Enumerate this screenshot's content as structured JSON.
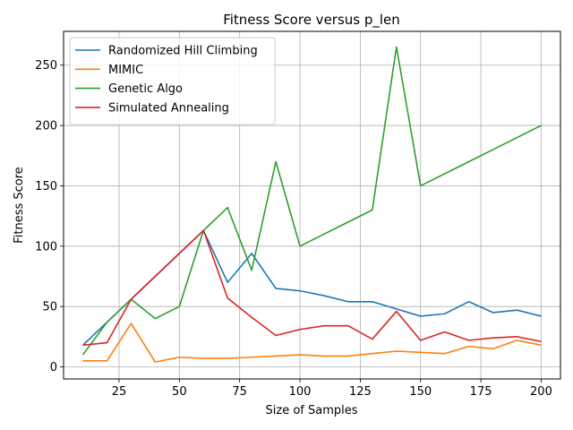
{
  "chart_data": {
    "type": "line",
    "title": "Fitness Score versus p_len",
    "xlabel": "Size of Samples",
    "ylabel": "Fitness Score",
    "xlim": [
      2,
      208
    ],
    "ylim": [
      -10,
      278
    ],
    "xticks": [
      25,
      50,
      75,
      100,
      125,
      150,
      175,
      200
    ],
    "yticks": [
      0,
      50,
      100,
      150,
      200,
      250
    ],
    "grid": true,
    "legend_position": "top-left",
    "series": [
      {
        "name": "Randomized Hill Climbing",
        "color": "#1f77b4",
        "x": [
          10,
          20,
          30,
          40,
          50,
          60,
          70,
          80,
          90,
          100,
          110,
          120,
          130,
          140,
          150,
          160,
          170,
          180,
          190,
          200
        ],
        "y": [
          18,
          37,
          56,
          75,
          94,
          113,
          70,
          94,
          65,
          63,
          59,
          54,
          54,
          48,
          42,
          44,
          54,
          45,
          47,
          42
        ]
      },
      {
        "name": "MIMIC",
        "color": "#ff7f0e",
        "x": [
          10,
          20,
          30,
          40,
          50,
          60,
          70,
          80,
          90,
          100,
          110,
          120,
          130,
          140,
          150,
          160,
          170,
          180,
          190,
          200
        ],
        "y": [
          5,
          5,
          36,
          4,
          8,
          7,
          7,
          8,
          9,
          10,
          9,
          9,
          11,
          13,
          12,
          11,
          17,
          15,
          22,
          18
        ]
      },
      {
        "name": "Genetic Algo",
        "color": "#2ca02c",
        "x": [
          10,
          20,
          30,
          40,
          50,
          60,
          70,
          80,
          90,
          100,
          110,
          120,
          130,
          140,
          150,
          160,
          170,
          180,
          190,
          200
        ],
        "y": [
          10,
          37,
          56,
          40,
          50,
          113,
          132,
          80,
          170,
          100,
          110,
          120,
          130,
          265,
          150,
          160,
          170,
          180,
          190,
          200
        ]
      },
      {
        "name": "Simulated Annealing",
        "color": "#d62728",
        "x": [
          10,
          20,
          30,
          40,
          50,
          60,
          70,
          80,
          90,
          100,
          110,
          120,
          130,
          140,
          150,
          160,
          170,
          180,
          190,
          200
        ],
        "y": [
          18,
          20,
          56,
          75,
          94,
          113,
          57,
          41,
          26,
          31,
          34,
          34,
          23,
          46,
          22,
          29,
          22,
          24,
          25,
          21
        ]
      }
    ]
  }
}
